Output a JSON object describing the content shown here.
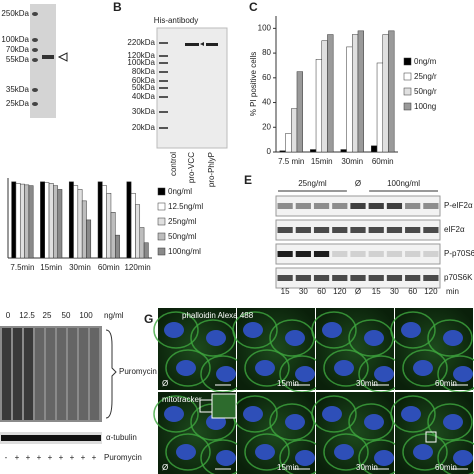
{
  "panels": {
    "A": {
      "ladder": [
        "250kDa",
        "100kDa",
        "70kDa",
        "55kDa",
        "35kDa",
        "25kDa"
      ]
    },
    "B": {
      "letter": "B",
      "title": "His-antibody",
      "ladder": [
        "220kDa",
        "120kDa",
        "100kDa",
        "80kDa",
        "60kDa",
        "50kDa",
        "40kDa",
        "30kDa",
        "20kDa"
      ],
      "lanes": [
        "control",
        "pro-VCC",
        "pro-PhlyP"
      ]
    },
    "C": {
      "letter": "C"
    },
    "E": {
      "letter": "E",
      "groups": [
        "25ng/ml",
        "Ø",
        "100ng/ml"
      ],
      "rows": [
        "P-eIF2α",
        "eIF2α",
        "P-p70S6",
        "p70S6K"
      ],
      "times": [
        "15",
        "30",
        "60",
        "120",
        "Ø",
        "15",
        "30",
        "60",
        "120"
      ],
      "unit": "min"
    },
    "F": {
      "doses": [
        "0",
        "12.5",
        "25",
        "50",
        "100"
      ],
      "unit": "ng/ml",
      "blot": "Puromycin",
      "loading": "α-tubulin",
      "signs": [
        "-",
        "+",
        "+",
        "+",
        "+",
        "+",
        "+",
        "+",
        "+"
      ],
      "treatment": "Puromycin"
    },
    "G": {
      "letter": "G",
      "rows": [
        {
          "stain": "phalloidin Alexa 488",
          "times": [
            "Ø",
            "15min",
            "30min",
            "60min"
          ]
        },
        {
          "stain": "mitotracker",
          "times": [
            "Ø",
            "15min",
            "30min",
            "60min"
          ]
        }
      ]
    }
  },
  "chart_data": [
    {
      "type": "bar",
      "ylabel": "% PI positive cells",
      "categories": [
        "7.5 min",
        "15min",
        "30min",
        "60min"
      ],
      "series": [
        {
          "name": "0ng/m",
          "color": "#000000",
          "values": [
            1,
            2,
            2,
            5
          ]
        },
        {
          "name": "25ng/r",
          "color": "#ffffff",
          "values": [
            15,
            75,
            85,
            72
          ]
        },
        {
          "name": "50ng/r",
          "color": "#e0e0e0",
          "values": [
            35,
            90,
            95,
            95
          ]
        },
        {
          "name": "100ng",
          "color": "#9a9a9a",
          "values": [
            65,
            95,
            98,
            98
          ]
        }
      ],
      "ylim": [
        0,
        110
      ],
      "yticks": [
        0,
        20,
        40,
        60,
        80,
        100
      ]
    },
    {
      "type": "bar",
      "categories": [
        "7.5min",
        "15min",
        "30min",
        "60min",
        "120min"
      ],
      "series": [
        {
          "name": "0ng/ml",
          "color": "#000000",
          "values": [
            100,
            100,
            100,
            100,
            100
          ]
        },
        {
          "name": "12.5ng/ml",
          "color": "#ffffff",
          "values": [
            98,
            99,
            95,
            95,
            85
          ]
        },
        {
          "name": "25ng/ml",
          "color": "#e0e0e0",
          "values": [
            97,
            98,
            90,
            85,
            70
          ]
        },
        {
          "name": "50ng/ml",
          "color": "#bdbdbd",
          "values": [
            96,
            95,
            75,
            60,
            40
          ]
        },
        {
          "name": "100ng/ml",
          "color": "#8a8a8a",
          "values": [
            95,
            90,
            50,
            30,
            20
          ]
        }
      ],
      "ylim": [
        0,
        105
      ]
    }
  ]
}
